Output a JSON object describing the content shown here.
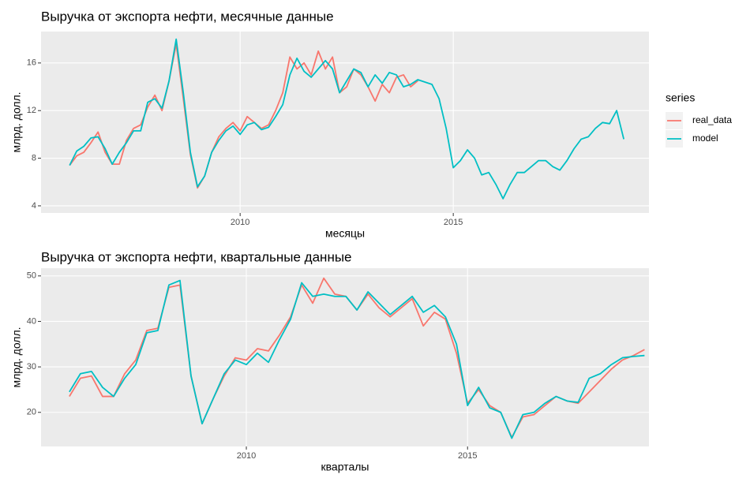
{
  "chart_data": [
    {
      "type": "line",
      "title": "Выручка от экспорта нефти, месячные данные",
      "xlabel": "месяцы",
      "ylabel": "млрд. долл.",
      "x": [
        2006,
        2006.167,
        2006.333,
        2006.5,
        2006.667,
        2006.833,
        2007,
        2007.167,
        2007.333,
        2007.5,
        2007.667,
        2007.833,
        2008,
        2008.167,
        2008.333,
        2008.5,
        2008.667,
        2008.833,
        2009,
        2009.167,
        2009.333,
        2009.5,
        2009.667,
        2009.833,
        2010,
        2010.167,
        2010.333,
        2010.5,
        2010.667,
        2010.833,
        2011,
        2011.167,
        2011.333,
        2011.5,
        2011.667,
        2011.833,
        2012,
        2012.167,
        2012.333,
        2012.5,
        2012.667,
        2012.833,
        2013,
        2013.167,
        2013.333,
        2013.5,
        2013.667,
        2013.833,
        2014,
        2014.167,
        2014.333,
        2014.5,
        2014.667,
        2014.833,
        2015,
        2015.167,
        2015.333,
        2015.5,
        2015.667,
        2015.833,
        2016,
        2016.167,
        2016.333,
        2016.5,
        2016.667,
        2016.833,
        2017,
        2017.167,
        2017.333,
        2017.5,
        2017.667,
        2017.833,
        2018,
        2018.167,
        2018.333,
        2018.5,
        2018.667,
        2018.833,
        2019
      ],
      "series": [
        {
          "name": "real_data",
          "color": "#F8766D",
          "values": [
            7.4,
            8.2,
            8.5,
            9.3,
            10.2,
            8.5,
            7.5,
            7.5,
            9.5,
            10.5,
            10.8,
            12.3,
            13.3,
            12.0,
            14.5,
            17.6,
            13.0,
            8.3,
            5.5,
            6.5,
            8.5,
            9.8,
            10.5,
            11.0,
            10.3,
            11.5,
            11.0,
            10.5,
            10.8,
            12.0,
            13.5,
            16.5,
            15.5,
            16.0,
            15.0,
            17.0,
            15.5,
            16.5,
            13.5,
            14.0,
            15.5,
            15.0,
            14.0,
            12.8,
            14.2,
            13.5,
            14.8,
            15.0,
            14.0,
            14.5,
            null,
            null,
            null,
            null,
            null,
            null,
            null,
            null,
            null,
            null,
            null,
            null,
            null,
            null,
            null,
            null,
            null,
            null,
            null,
            null,
            null,
            null,
            null,
            null,
            null,
            null,
            null,
            null,
            null
          ]
        },
        {
          "name": "model",
          "color": "#00BFC4",
          "values": [
            7.4,
            8.6,
            9.0,
            9.7,
            9.8,
            8.8,
            7.5,
            8.5,
            9.3,
            10.3,
            10.3,
            12.7,
            13.0,
            12.2,
            14.5,
            18.0,
            13.5,
            8.5,
            5.6,
            6.5,
            8.5,
            9.5,
            10.3,
            10.7,
            10.0,
            10.8,
            11.0,
            10.4,
            10.6,
            11.5,
            12.5,
            15.0,
            16.4,
            15.3,
            14.8,
            15.5,
            16.2,
            15.5,
            13.5,
            14.5,
            15.5,
            15.2,
            14.0,
            15.0,
            14.3,
            15.2,
            15.0,
            14.0,
            14.2,
            14.6,
            14.4,
            14.2,
            13.0,
            10.5,
            7.2,
            7.8,
            8.7,
            8.0,
            6.6,
            6.8,
            5.8,
            4.6,
            5.8,
            6.8,
            6.8,
            7.3,
            7.8,
            7.8,
            7.3,
            7.0,
            7.8,
            8.8,
            9.6,
            9.8,
            10.5,
            11.0,
            10.9,
            12.0,
            9.6
          ]
        }
      ],
      "xlim": [
        2005.33,
        2019.59
      ],
      "xticks": [
        2010,
        2015
      ],
      "ylim": [
        3.4,
        18.64
      ],
      "yticks": [
        4,
        8,
        12,
        16
      ],
      "grid": true,
      "legend": {
        "title": "series",
        "position": "right"
      }
    },
    {
      "type": "line",
      "title": "Выручка от экспорта нефти, квартальные данные",
      "xlabel": "кварталы",
      "ylabel": "млрд. долл.",
      "x": [
        2006,
        2006.25,
        2006.5,
        2006.75,
        2007,
        2007.25,
        2007.5,
        2007.75,
        2008,
        2008.25,
        2008.5,
        2008.75,
        2009,
        2009.25,
        2009.5,
        2009.75,
        2010,
        2010.25,
        2010.5,
        2010.75,
        2011,
        2011.25,
        2011.5,
        2011.75,
        2012,
        2012.25,
        2012.5,
        2012.75,
        2013,
        2013.25,
        2013.5,
        2013.75,
        2014,
        2014.25,
        2014.5,
        2014.75,
        2015,
        2015.25,
        2015.5,
        2015.75,
        2016,
        2016.25,
        2016.5,
        2016.75,
        2017,
        2017.25,
        2017.5,
        2017.75,
        2018,
        2018.25,
        2018.5,
        2018.75,
        2019
      ],
      "series": [
        {
          "name": "real_data",
          "color": "#F8766D",
          "values": [
            23.5,
            27.5,
            28,
            23.5,
            23.5,
            28.5,
            31.5,
            38,
            38.5,
            47.5,
            48,
            28,
            17.5,
            23,
            28,
            32,
            31.5,
            34,
            33.5,
            37,
            41,
            48,
            44,
            49.5,
            46,
            45.5,
            42.5,
            46,
            43,
            41,
            43,
            45,
            39,
            42,
            40.5,
            33,
            22,
            25,
            21.5,
            20,
            14.5,
            19,
            19.5,
            21.5,
            23.5,
            22.5,
            22,
            24.5,
            27,
            29.5,
            31.5,
            32.5,
            33.8
          ]
        },
        {
          "name": "model",
          "color": "#00BFC4",
          "values": [
            24.5,
            28.5,
            29,
            25.5,
            23.5,
            27.5,
            30.5,
            37.5,
            38,
            48,
            49,
            28,
            17.5,
            23,
            28.5,
            31.5,
            30.5,
            33,
            31,
            36,
            40.5,
            48.5,
            45.5,
            46,
            45.5,
            45.5,
            42.5,
            46.5,
            44,
            41.5,
            43.5,
            45.5,
            42,
            43.5,
            41,
            35,
            21.5,
            25.5,
            21,
            20,
            14.3,
            19.5,
            20,
            22,
            23.5,
            22.5,
            22.2,
            27.5,
            28.5,
            30.5,
            32,
            32.3,
            32.5
          ]
        }
      ],
      "xlim": [
        2005.36,
        2019.1
      ],
      "xticks": [
        2010,
        2015
      ],
      "ylim": [
        12.5,
        51.7
      ],
      "yticks": [
        20,
        30,
        40,
        50
      ],
      "grid": true
    }
  ]
}
